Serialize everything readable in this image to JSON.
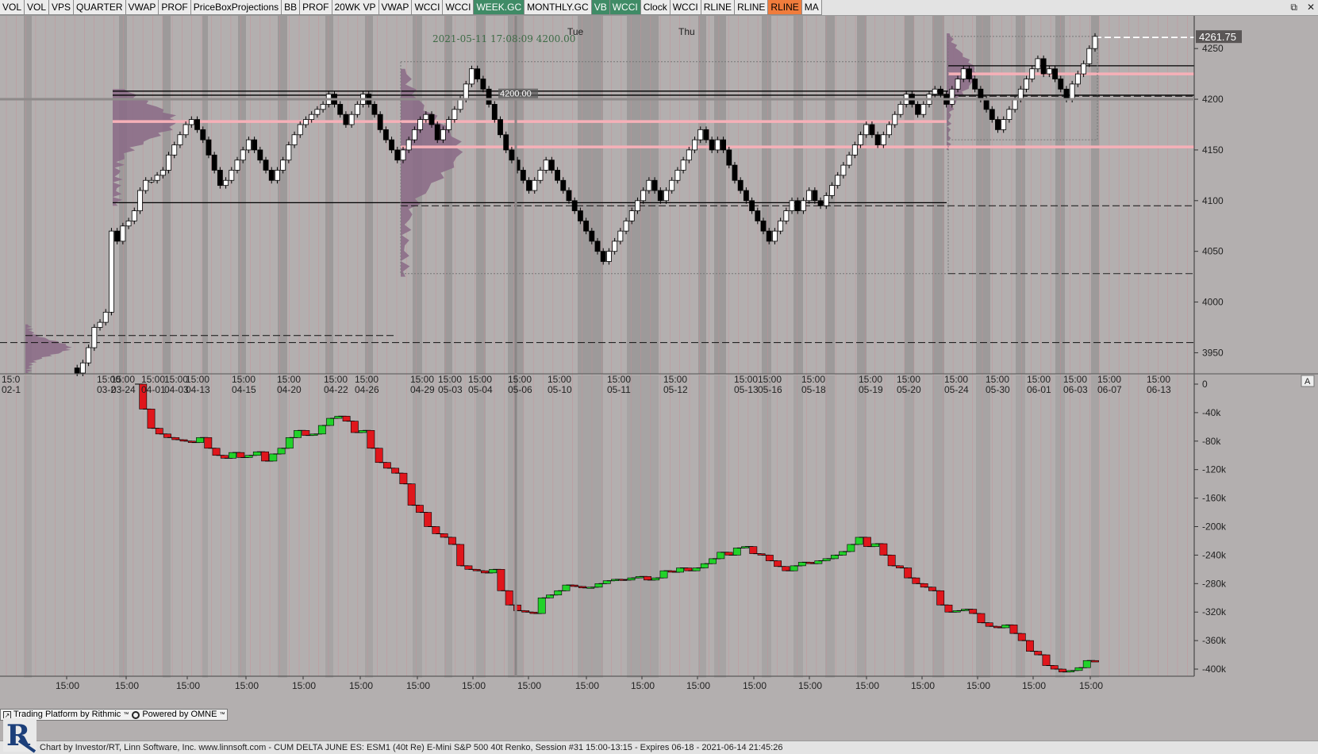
{
  "toolbar": {
    "buttons": [
      {
        "label": "VOL",
        "style": "normal"
      },
      {
        "label": "VOL",
        "style": "normal"
      },
      {
        "label": "VPS",
        "style": "normal"
      },
      {
        "label": "QUARTER",
        "style": "normal"
      },
      {
        "label": "VWAP",
        "style": "normal"
      },
      {
        "label": "PROF",
        "style": "normal"
      },
      {
        "label": "PriceBoxProjections",
        "style": "normal"
      },
      {
        "label": "BB",
        "style": "normal"
      },
      {
        "label": "PROF",
        "style": "normal"
      },
      {
        "label": "20WK VP",
        "style": "normal"
      },
      {
        "label": "VWAP",
        "style": "normal"
      },
      {
        "label": "WCCI",
        "style": "normal"
      },
      {
        "label": "WCCI",
        "style": "normal"
      },
      {
        "label": "WEEK.GC",
        "style": "green"
      },
      {
        "label": "MONTHLY.GC",
        "style": "normal"
      },
      {
        "label": "VB",
        "style": "green"
      },
      {
        "label": "WCCI",
        "style": "green"
      },
      {
        "label": "Clock",
        "style": "normal"
      },
      {
        "label": "WCCI",
        "style": "normal"
      },
      {
        "label": "RLINE",
        "style": "normal"
      },
      {
        "label": "RLINE",
        "style": "normal"
      },
      {
        "label": "RLINE",
        "style": "orange"
      },
      {
        "label": "MA",
        "style": "normal"
      }
    ],
    "window_icons": [
      "restore-icon",
      "close-icon"
    ]
  },
  "chart_data": [
    {
      "type": "candlestick",
      "panel": "price",
      "instrument": "ESM1 (40t Re) E-Mini S&P 500 40t Renko",
      "current_price_label": "4261.75",
      "cursor_readout": {
        "time": "2021-05-11 17:08:09",
        "price": "4200.00"
      },
      "cursor_price_tag": "4200.00",
      "day_labels": [
        {
          "label": "Tue",
          "x_index": 20
        },
        {
          "label": "Thu",
          "x_index": 32
        }
      ],
      "ylim": [
        3930,
        4265
      ],
      "y_ticks": [
        3950,
        4000,
        4050,
        4100,
        4150,
        4200,
        4250
      ],
      "x_tick_labels": [
        {
          "time": "15:0",
          "date": "02-1"
        },
        {
          "time": "15:00",
          "date": "03-2"
        },
        {
          "time": "15:00",
          "date": "03-24"
        },
        {
          "time": "15:00",
          "date": "04-01"
        },
        {
          "time": "15:00",
          "date": "04-03"
        },
        {
          "time": "15:00",
          "date": "04-13"
        },
        {
          "time": "15:00",
          "date": "04-15"
        },
        {
          "time": "15:00",
          "date": "04-20"
        },
        {
          "time": "15:00",
          "date": "04-22"
        },
        {
          "time": "15:00",
          "date": "04-26"
        },
        {
          "time": "15:00",
          "date": "04-29"
        },
        {
          "time": "15:00",
          "date": "05-03"
        },
        {
          "time": "15:00",
          "date": "05-04"
        },
        {
          "time": "15:00",
          "date": "05-06"
        },
        {
          "time": "15:00",
          "date": "05-10"
        },
        {
          "time": "15:00",
          "date": "05-11"
        },
        {
          "time": "15:00",
          "date": "05-12"
        },
        {
          "time": "15:00",
          "date": "05-13"
        },
        {
          "time": "15:00",
          "date": "05-16"
        },
        {
          "time": "15:00",
          "date": "05-18"
        },
        {
          "time": "15:00",
          "date": "05-19"
        },
        {
          "time": "15:00",
          "date": "05-20"
        },
        {
          "time": "15:00",
          "date": "05-24"
        },
        {
          "time": "15:00",
          "date": "05-30"
        },
        {
          "time": "15:00",
          "date": "06-01"
        },
        {
          "time": "15:00",
          "date": "06-03"
        },
        {
          "time": "15:00",
          "date": "06-07"
        },
        {
          "time": "15:00",
          "date": "06-13"
        }
      ],
      "path": [
        3935,
        3930,
        3940,
        3955,
        3975,
        3980,
        3990,
        4070,
        4060,
        4075,
        4080,
        4090,
        4110,
        4120,
        4120,
        4125,
        4130,
        4145,
        4155,
        4165,
        4175,
        4180,
        4170,
        4160,
        4145,
        4130,
        4115,
        4120,
        4130,
        4140,
        4150,
        4160,
        4150,
        4140,
        4130,
        4120,
        4130,
        4140,
        4155,
        4165,
        4175,
        4180,
        4185,
        4190,
        4195,
        4205,
        4195,
        4185,
        4175,
        4185,
        4195,
        4205,
        4195,
        4185,
        4170,
        4160,
        4150,
        4140,
        4150,
        4160,
        4170,
        4180,
        4185,
        4175,
        4160,
        4170,
        4180,
        4190,
        4200,
        4215,
        4230,
        4220,
        4210,
        4195,
        4180,
        4165,
        4150,
        4140,
        4130,
        4120,
        4110,
        4120,
        4130,
        4140,
        4130,
        4120,
        4110,
        4100,
        4090,
        4080,
        4070,
        4060,
        4050,
        4040,
        4050,
        4060,
        4070,
        4080,
        4090,
        4100,
        4110,
        4120,
        4110,
        4100,
        4110,
        4120,
        4130,
        4140,
        4150,
        4160,
        4170,
        4160,
        4150,
        4160,
        4150,
        4135,
        4120,
        4110,
        4100,
        4090,
        4080,
        4070,
        4060,
        4070,
        4080,
        4090,
        4100,
        4090,
        4100,
        4110,
        4100,
        4095,
        4105,
        4115,
        4125,
        4135,
        4145,
        4155,
        4165,
        4175,
        4165,
        4155,
        4165,
        4175,
        4185,
        4195,
        4205,
        4195,
        4185,
        4195,
        4205,
        4210,
        4205,
        4195,
        4210,
        4220,
        4230,
        4220,
        4210,
        4200,
        4190,
        4180,
        4170,
        4180,
        4190,
        4200,
        4210,
        4220,
        4230,
        4240,
        4225,
        4230,
        4220,
        4210,
        4200,
        4215,
        4225,
        4235,
        4250,
        4262
      ],
      "horizontal_levels": [
        {
          "price": 4208,
          "style": "solid-black"
        },
        {
          "price": 4204,
          "style": "solid-black"
        },
        {
          "price": 4200,
          "style": "solid-grey"
        },
        {
          "price": 4178,
          "style": "pink"
        },
        {
          "price": 4153,
          "style": "pink"
        },
        {
          "price": 4225,
          "style": "pink"
        },
        {
          "price": 4098,
          "style": "solid-black"
        },
        {
          "price": 4095,
          "style": "dashed-black"
        },
        {
          "price": 3967,
          "style": "dashed-black"
        },
        {
          "price": 3960,
          "style": "dashed-black"
        },
        {
          "price": 4233,
          "style": "solid-black"
        },
        {
          "price": 4203,
          "style": "dashed-black"
        },
        {
          "price": 4261,
          "style": "dashed-white"
        }
      ]
    },
    {
      "type": "candlestick",
      "panel": "cumulative-delta",
      "name": "CUM DELTA JUNE ES",
      "ylim": [
        -410000,
        10000
      ],
      "y_ticks": [
        0,
        -40000,
        -80000,
        -120000,
        -160000,
        -200000,
        -240000,
        -280000,
        -320000,
        -360000,
        -400000
      ],
      "y_tick_labels": [
        "0",
        "-40k",
        "-80k",
        "-120k",
        "-160k",
        "-200k",
        "-240k",
        "-280k",
        "-320k",
        "-360k",
        "-400k"
      ],
      "x_tick_labels": [
        "15:00",
        "15:00",
        "15:00",
        "15:00",
        "15:00",
        "15:00",
        "15:00",
        "15:00",
        "15:00",
        "15:00",
        "15:00",
        "15:00",
        "15:00",
        "15:00",
        "15:00",
        "15:00",
        "15:00",
        "15:00",
        "15:00",
        "15:00"
      ],
      "path": [
        0,
        -35000,
        -62000,
        -70000,
        -75000,
        -78000,
        -80000,
        -82000,
        -75000,
        -90000,
        -100000,
        -104000,
        -96000,
        -103000,
        -100000,
        -95000,
        -108000,
        -98000,
        -90000,
        -75000,
        -65000,
        -72000,
        -70000,
        -58000,
        -48000,
        -45000,
        -52000,
        -68000,
        -65000,
        -90000,
        -110000,
        -118000,
        -125000,
        -140000,
        -170000,
        -180000,
        -200000,
        -210000,
        -215000,
        -225000,
        -255000,
        -260000,
        -262000,
        -265000,
        -260000,
        -290000,
        -310000,
        -318000,
        -320000,
        -322000,
        -300000,
        -296000,
        -290000,
        -282000,
        -284000,
        -286000,
        -285000,
        -280000,
        -276000,
        -274000,
        -275000,
        -272000,
        -270000,
        -275000,
        -272000,
        -262000,
        -264000,
        -258000,
        -262000,
        -258000,
        -252000,
        -245000,
        -236000,
        -240000,
        -230000,
        -228000,
        -238000,
        -240000,
        -248000,
        -256000,
        -262000,
        -255000,
        -250000,
        -252000,
        -248000,
        -245000,
        -240000,
        -235000,
        -225000,
        -215000,
        -228000,
        -224000,
        -240000,
        -255000,
        -258000,
        -272000,
        -280000,
        -285000,
        -290000,
        -310000,
        -320000,
        -318000,
        -316000,
        -322000,
        -335000,
        -340000,
        -342000,
        -338000,
        -350000,
        -360000,
        -375000,
        -380000,
        -395000,
        -400000,
        -404000,
        -402000,
        -398000,
        -388000,
        -390000
      ]
    }
  ],
  "cum_delta_label": "A",
  "rithmic_bar": {
    "platform": "Trading Platform by Rithmic",
    "platform_mark": "™",
    "omne": "Powered by OMNE",
    "omne_mark": "™"
  },
  "footer": {
    "text": "Chart by Investor/RT, Linn Software, Inc. www.linnsoft.com - CUM DELTA JUNE ES: ESM1 (40t Re) E-Mini S&P 500 40t Renko, Session #31 15:00-13:15 - Expires 06-18 - 2021-06-14 21:45:26"
  },
  "logo": {
    "letter": "R"
  },
  "colors": {
    "background": "#b3afaf",
    "session_band": "#9d9a9a",
    "up_candle": "#ffffff",
    "down_candle": "#000000",
    "delta_up": "#22d22a",
    "delta_down": "#e0161c",
    "profile": "#8a6a86",
    "pink_level": "#f6b0b8",
    "grid_red": "#c98f97"
  }
}
